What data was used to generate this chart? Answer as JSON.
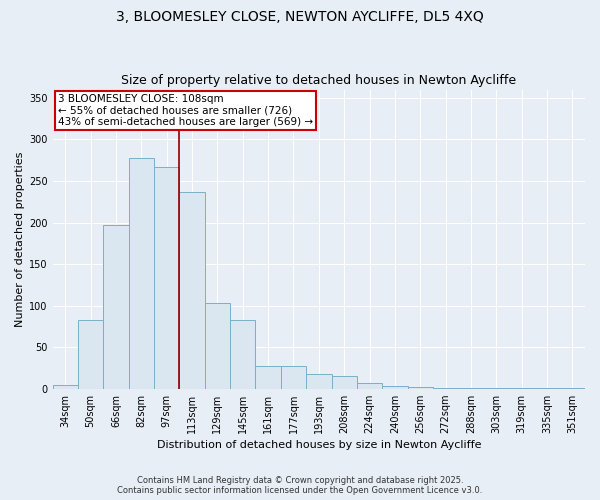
{
  "title1": "3, BLOOMESLEY CLOSE, NEWTON AYCLIFFE, DL5 4XQ",
  "title2": "Size of property relative to detached houses in Newton Aycliffe",
  "xlabel": "Distribution of detached houses by size in Newton Aycliffe",
  "ylabel": "Number of detached properties",
  "categories": [
    "34sqm",
    "50sqm",
    "66sqm",
    "82sqm",
    "97sqm",
    "113sqm",
    "129sqm",
    "145sqm",
    "161sqm",
    "177sqm",
    "193sqm",
    "208sqm",
    "224sqm",
    "240sqm",
    "256sqm",
    "272sqm",
    "288sqm",
    "303sqm",
    "319sqm",
    "335sqm",
    "351sqm"
  ],
  "values": [
    5,
    83,
    197,
    278,
    267,
    237,
    103,
    83,
    27,
    27,
    18,
    15,
    7,
    3,
    2,
    1,
    1,
    1,
    1,
    1,
    1
  ],
  "bar_color": "#dae6f0",
  "bar_edge_color": "#7aafc8",
  "vline_color": "#8b0000",
  "vline_x": 5,
  "annotation_text": "3 BLOOMESLEY CLOSE: 108sqm\n← 55% of detached houses are smaller (726)\n43% of semi-detached houses are larger (569) →",
  "annotation_box_color": "#ffffff",
  "annotation_box_edge": "#cc0000",
  "ylim": [
    0,
    360
  ],
  "yticks": [
    0,
    50,
    100,
    150,
    200,
    250,
    300,
    350
  ],
  "footer": "Contains HM Land Registry data © Crown copyright and database right 2025.\nContains public sector information licensed under the Open Government Licence v3.0.",
  "background_color": "#e8eef5",
  "plot_background": "#e8eef5",
  "grid_color": "#ffffff",
  "title_fontsize": 10,
  "subtitle_fontsize": 9,
  "tick_fontsize": 7,
  "ylabel_fontsize": 8,
  "xlabel_fontsize": 8,
  "annotation_fontsize": 7.5,
  "footer_fontsize": 6
}
